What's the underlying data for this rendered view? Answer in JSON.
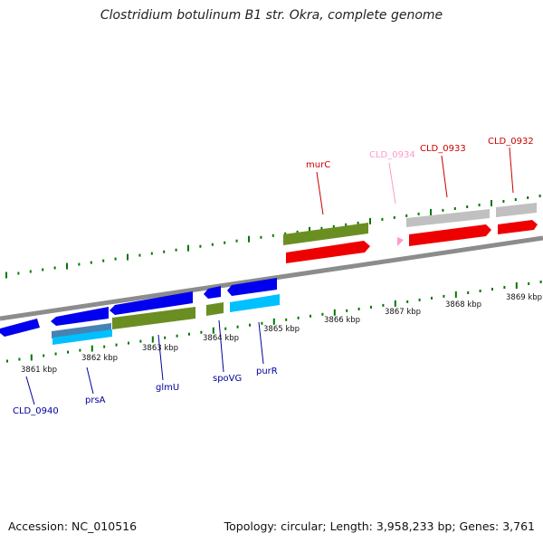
{
  "title": "Clostridium botulinum B1 str. Okra, complete genome",
  "footer": {
    "accession": "Accession: NC_010516",
    "topology": "Topology: circular; Length: 3,958,233 bp; Genes: 3,761"
  },
  "ticks": [
    "3861 kbp",
    "3862 kbp",
    "3863 kbp",
    "3864 kbp",
    "3865 kbp",
    "3866 kbp",
    "3867 kbp",
    "3868 kbp",
    "3869 kbp"
  ],
  "gene_labels": {
    "CLD_0940": "CLD_0940",
    "prsA": "prsA",
    "glmU": "glmU",
    "spoVG": "spoVG",
    "purR": "purR",
    "murC": "murC",
    "CLD_0934": "CLD_0934",
    "CLD_0933": "CLD_0933",
    "CLD_0932": "CLD_0932"
  },
  "colors": {
    "backbone": "#8c8c8c",
    "cds": "#0000ee",
    "gene_green": "#6b8e23",
    "gene_red": "#ee0000",
    "rna_cyan": "#00c0ff",
    "pseudo_gray": "#c0c0c0",
    "pink": "#ff99cc",
    "tick": "#007700",
    "label_blue": "#000099",
    "label_red": "#cc0000"
  }
}
